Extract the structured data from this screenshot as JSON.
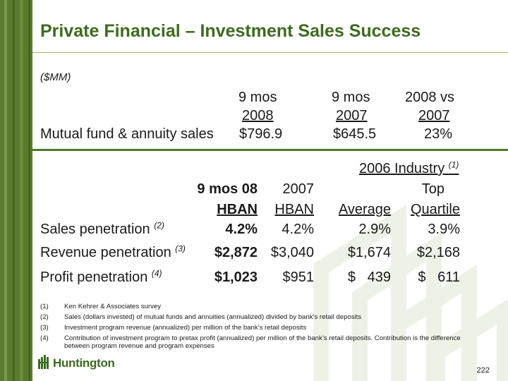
{
  "title": "Private Financial – Investment Sales Success",
  "units": "($MM)",
  "top_table": {
    "headers": [
      {
        "line1": "9 mos",
        "line2": "2008"
      },
      {
        "line1": "9 mos",
        "line2": "2007"
      },
      {
        "line1": "2008 vs",
        "line2": "2007"
      }
    ],
    "row": {
      "label": "Mutual fund & annuity sales",
      "values": [
        "$796.9",
        "$645.5",
        "23%"
      ]
    }
  },
  "bottom_table": {
    "industry_header": "2006 Industry",
    "industry_note": "(1)",
    "col_headers": [
      {
        "line1": "9 mos 08",
        "line2": "HBAN"
      },
      {
        "line1": "2007",
        "line2": "HBAN"
      },
      {
        "line1": "",
        "line2": "Average"
      },
      {
        "line1": "Top",
        "line2": "Quartile"
      }
    ],
    "rows": [
      {
        "label": "Sales penetration",
        "note": "(2)",
        "values": [
          "4.2%",
          "4.2%",
          "2.9%",
          "3.9%"
        ]
      },
      {
        "label": "Revenue penetration",
        "note": "(3)",
        "values": [
          "$2,872",
          "$3,040",
          "$1,674",
          "$2,168"
        ]
      },
      {
        "label": "Profit penetration",
        "note": "(4)",
        "values": [
          "$1,023",
          "$951",
          "$   439",
          "$   611"
        ]
      }
    ]
  },
  "footnotes": [
    {
      "num": "(1)",
      "text": "Ken Kehrer & Associates survey"
    },
    {
      "num": "(2)",
      "text": "Sales (dollars invested) of mutual funds and annuities (annualized) divided by bank’s retail deposits"
    },
    {
      "num": "(3)",
      "text": "Investment program revenue (annualized) per million of the bank’s retail deposits"
    },
    {
      "num": "(4)",
      "text": "Contribution of investment program to pretax profit (annualized) per million of the bank’s retail deposits.  Contribution is the difference",
      "text2": "between program revenue and program expenses"
    }
  ],
  "logo": {
    "text": "Huntington"
  },
  "page_number": "222",
  "colors": {
    "brand_green": "#3d6b1f",
    "stripe_green": "#5a7a2e",
    "rule_green": "#4f7a2a"
  }
}
